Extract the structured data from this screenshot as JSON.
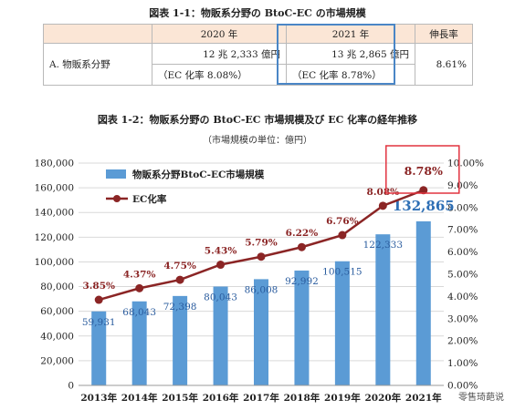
{
  "table1": {
    "title": "図表 1-1：物販系分野の BtoC-EC の市場規模",
    "headers": [
      "",
      "2020 年",
      "2021 年",
      "伸長率"
    ],
    "row_label": "A. 物販系分野",
    "y2020_size": "12 兆 2,333 億円",
    "y2020_rate": "（EC 化率 8.08%）",
    "y2021_size": "13 兆 2,865 億円",
    "y2021_rate": "（EC 化率 8.78%）",
    "growth": "8.61%",
    "highlight_color": "#4a86c6"
  },
  "chart_data": {
    "type": "bar",
    "title": "図表 1-2：物販系分野の BtoC-EC 市場規模及び EC 化率の経年推移",
    "subtitle": "（市場規模の単位：億円）",
    "categories": [
      "2013年",
      "2014年",
      "2015年",
      "2016年",
      "2017年",
      "2018年",
      "2019年",
      "2020年",
      "2021年"
    ],
    "series": [
      {
        "name": "物販系分野BtoC-EC市場規模",
        "type": "bar",
        "axis": "left",
        "color": "#5b9bd5",
        "values": [
          59931,
          68043,
          72398,
          80043,
          86008,
          92992,
          100515,
          122333,
          132865
        ],
        "labels": [
          "59,931",
          "68,043",
          "72,398",
          "80,043",
          "86,008",
          "92,992",
          "100,515",
          "122,333",
          "132,865"
        ]
      },
      {
        "name": "EC化率",
        "type": "line",
        "axis": "right",
        "color": "#8b2525",
        "values": [
          3.85,
          4.37,
          4.75,
          5.43,
          5.79,
          6.22,
          6.76,
          8.08,
          8.78
        ],
        "labels": [
          "3.85%",
          "4.37%",
          "4.75%",
          "5.43%",
          "5.79%",
          "6.22%",
          "6.76%",
          "8.08%",
          "8.78%"
        ]
      }
    ],
    "y_left": {
      "min": 0,
      "max": 180000,
      "ticks": [
        "0",
        "20,000",
        "40,000",
        "60,000",
        "80,000",
        "100,000",
        "120,000",
        "140,000",
        "160,000",
        "180,000"
      ]
    },
    "y_right": {
      "min": 0,
      "max": 10,
      "ticks": [
        "0.00%",
        "1.00%",
        "2.00%",
        "3.00%",
        "4.00%",
        "5.00%",
        "6.00%",
        "7.00%",
        "8.00%",
        "9.00%",
        "10.00%"
      ]
    },
    "grid": true,
    "legend": "top-left",
    "highlight_color": "#e2333f"
  },
  "watermark": "零售琦葩说"
}
